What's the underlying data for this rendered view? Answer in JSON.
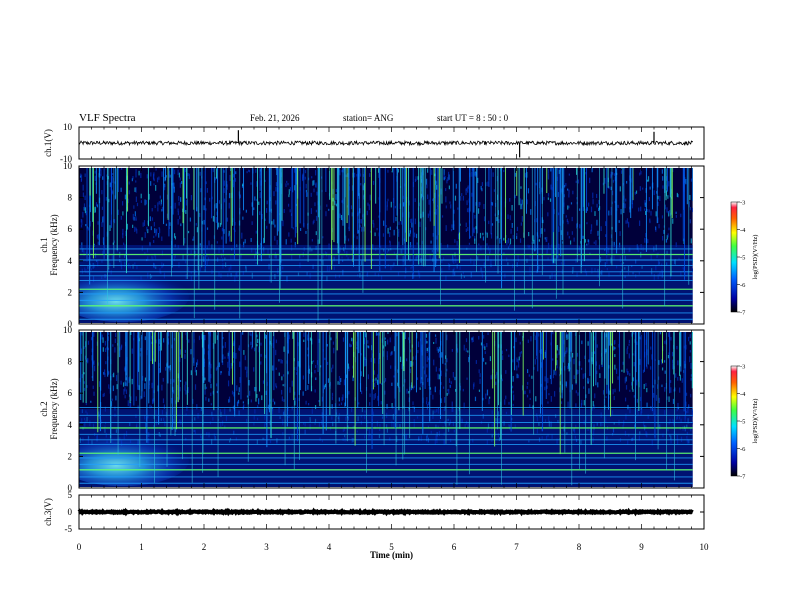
{
  "header": {
    "title": "VLF Spectra",
    "date": "Feb. 21, 2026",
    "station": "station= ANG",
    "start": "start  UT  =   8  : 50 : 0"
  },
  "chart_data": [
    {
      "type": "line",
      "name": "ch1-waveform",
      "ylabel": "ch.1(V)",
      "ylim": [
        -10,
        10
      ],
      "ytick_labels": [
        "10",
        "-10"
      ],
      "xlim": [
        0,
        10
      ],
      "baseline": 0,
      "noise_amplitude": 1.2,
      "spikes": [
        {
          "x": 2.55,
          "y": 8
        },
        {
          "x": 7.05,
          "y": -9
        },
        {
          "x": 9.2,
          "y": 7
        }
      ]
    },
    {
      "type": "heatmap",
      "name": "ch1-spectrogram",
      "ylabel": "ch.1\nFrequency (kHz)",
      "ylabel_lines": [
        "ch.1",
        "Frequency (kHz)"
      ],
      "xlim": [
        0,
        10
      ],
      "data_xmax": 9.82,
      "ylim": [
        0,
        10
      ],
      "yticks": [
        "0",
        "2",
        "4",
        "6",
        "8",
        "10"
      ],
      "colorbar": {
        "label": "log(PSD)(V²/Hz)",
        "range": [
          -7,
          -3
        ],
        "ticks": [
          "-3",
          "-4",
          "-5",
          "-6",
          "-7"
        ]
      },
      "lines_khz": [
        0.3,
        0.7,
        1.15,
        1.5,
        1.9,
        2.2,
        2.75,
        3.05,
        3.3,
        3.7,
        4.05,
        4.4,
        4.75
      ],
      "bright_lines_khz": [
        1.15,
        2.2,
        4.4
      ],
      "noise_blob": {
        "x": [
          0,
          1.8
        ],
        "y": [
          0.5,
          3
        ]
      }
    },
    {
      "type": "heatmap",
      "name": "ch2-spectrogram",
      "ylabel": "ch.2\nFrequency (kHz)",
      "ylabel_lines": [
        "ch.2",
        "Frequency (kHz)"
      ],
      "xlim": [
        0,
        10
      ],
      "data_xmax": 9.82,
      "ylim": [
        0,
        10
      ],
      "yticks": [
        "0",
        "2",
        "4",
        "6",
        "8",
        "10"
      ],
      "colorbar": {
        "label": "log(PSD)(V²/Hz)",
        "range": [
          -7,
          -3
        ],
        "ticks": [
          "-3",
          "-4",
          "-5",
          "-6",
          "-7"
        ]
      },
      "lines_khz": [
        0.3,
        0.7,
        1.15,
        1.5,
        1.9,
        2.2,
        2.75,
        3.05,
        3.4,
        3.8,
        4.15,
        4.6,
        5.1
      ],
      "bright_lines_khz": [
        1.15,
        2.2,
        3.8
      ],
      "noise_blob": {
        "x": [
          0,
          1.8
        ],
        "y": [
          0.5,
          3
        ]
      }
    },
    {
      "type": "line",
      "name": "ch3-waveform",
      "ylabel": "ch.3(V)",
      "ylim": [
        -5,
        5
      ],
      "ytick_labels": [
        "5",
        "0",
        "-5"
      ],
      "xlim": [
        0,
        10
      ],
      "baseline": 0,
      "noise_amplitude": 0.2,
      "spikes": []
    }
  ],
  "xaxis": {
    "label": "Time  (min)",
    "ticks": [
      "0",
      "1",
      "2",
      "3",
      "4",
      "5",
      "6",
      "7",
      "8",
      "9",
      "10"
    ]
  },
  "colors": {
    "background": "#00003a",
    "axis": "#000000"
  }
}
